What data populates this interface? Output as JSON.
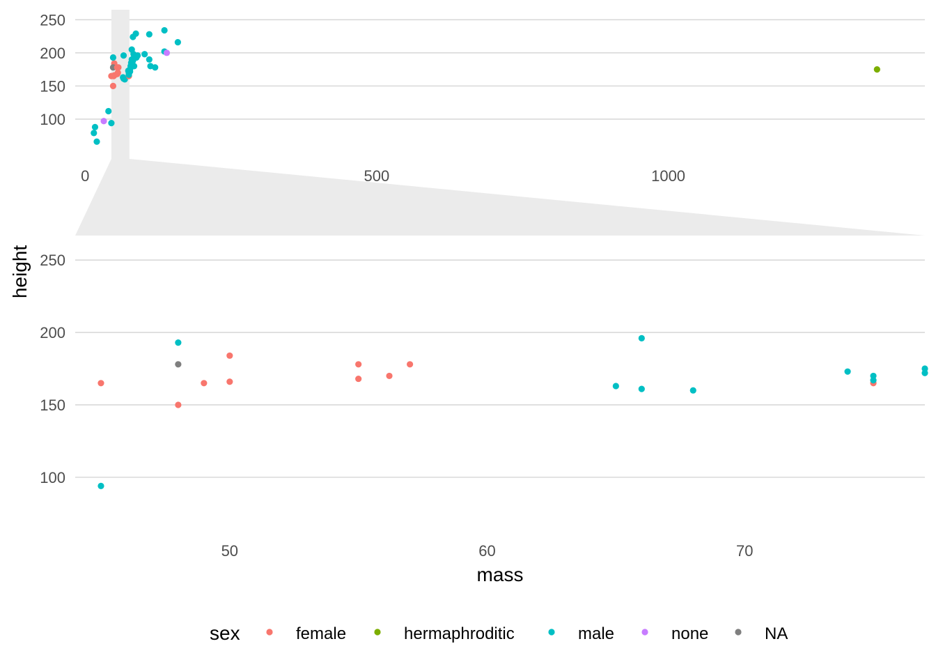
{
  "chart_data": {
    "type": "scatter",
    "xlabel": "mass",
    "ylabel": "height",
    "legend": {
      "title": "sex",
      "position": "bottom",
      "entries": [
        {
          "label": "female",
          "color": "#F8766D"
        },
        {
          "label": "hermaphroditic",
          "color": "#7CAE00"
        },
        {
          "label": "male",
          "color": "#00BFC4"
        },
        {
          "label": "none",
          "color": "#C77CFF"
        },
        {
          "label": "NA",
          "color": "#7F7F7F"
        }
      ]
    },
    "overview": {
      "xlim": [
        -17,
        1440
      ],
      "ylim": [
        40,
        265
      ],
      "xticks": [
        0,
        500,
        1000
      ],
      "yticks": [
        100,
        150,
        200,
        250
      ],
      "zoom_range": [
        45,
        76
      ],
      "grid": true
    },
    "zoom": {
      "xlim": [
        44,
        77
      ],
      "ylim": [
        60,
        265
      ],
      "xticks": [
        50,
        60,
        70
      ],
      "yticks": [
        100,
        150,
        200,
        250
      ],
      "grid": true
    },
    "points": [
      {
        "x": 20,
        "y": 66,
        "sex": "male"
      },
      {
        "x": 15,
        "y": 79,
        "sex": "male"
      },
      {
        "x": 17,
        "y": 88,
        "sex": "male"
      },
      {
        "x": 40,
        "y": 112,
        "sex": "male"
      },
      {
        "x": 45,
        "y": 94,
        "sex": "male"
      },
      {
        "x": 32,
        "y": 97,
        "sex": "none"
      },
      {
        "x": 45,
        "y": 165,
        "sex": "female"
      },
      {
        "x": 48,
        "y": 150,
        "sex": "female"
      },
      {
        "x": 49,
        "y": 165,
        "sex": "female"
      },
      {
        "x": 50,
        "y": 166,
        "sex": "female"
      },
      {
        "x": 50,
        "y": 184,
        "sex": "female"
      },
      {
        "x": 48,
        "y": 178,
        "sex": "NA"
      },
      {
        "x": 48,
        "y": 193,
        "sex": "male"
      },
      {
        "x": 55,
        "y": 168,
        "sex": "female"
      },
      {
        "x": 55,
        "y": 178,
        "sex": "female"
      },
      {
        "x": 56.2,
        "y": 170,
        "sex": "female"
      },
      {
        "x": 57,
        "y": 178,
        "sex": "female"
      },
      {
        "x": 65,
        "y": 163,
        "sex": "male"
      },
      {
        "x": 66,
        "y": 196,
        "sex": "male"
      },
      {
        "x": 68,
        "y": 160,
        "sex": "male"
      },
      {
        "x": 74,
        "y": 173,
        "sex": "male"
      },
      {
        "x": 75,
        "y": 165,
        "sex": "female"
      },
      {
        "x": 75,
        "y": 170,
        "sex": "male"
      },
      {
        "x": 75,
        "y": 167,
        "sex": "male"
      },
      {
        "x": 66,
        "y": 161,
        "sex": "male"
      },
      {
        "x": 77,
        "y": 172,
        "sex": "male"
      },
      {
        "x": 77,
        "y": 175,
        "sex": "male"
      },
      {
        "x": 78,
        "y": 180,
        "sex": "male"
      },
      {
        "x": 79,
        "y": 185,
        "sex": "male"
      },
      {
        "x": 80,
        "y": 183,
        "sex": "male"
      },
      {
        "x": 80,
        "y": 190,
        "sex": "male"
      },
      {
        "x": 80,
        "y": 205,
        "sex": "male"
      },
      {
        "x": 82,
        "y": 188,
        "sex": "male"
      },
      {
        "x": 82,
        "y": 224,
        "sex": "male"
      },
      {
        "x": 83,
        "y": 198,
        "sex": "male"
      },
      {
        "x": 84,
        "y": 180,
        "sex": "male"
      },
      {
        "x": 85,
        "y": 193,
        "sex": "male"
      },
      {
        "x": 85,
        "y": 196,
        "sex": "male"
      },
      {
        "x": 87,
        "y": 229,
        "sex": "male"
      },
      {
        "x": 88,
        "y": 193,
        "sex": "male"
      },
      {
        "x": 90,
        "y": 196,
        "sex": "male"
      },
      {
        "x": 102,
        "y": 198,
        "sex": "male"
      },
      {
        "x": 110,
        "y": 228,
        "sex": "male"
      },
      {
        "x": 110,
        "y": 190,
        "sex": "male"
      },
      {
        "x": 112,
        "y": 180,
        "sex": "male"
      },
      {
        "x": 120,
        "y": 178,
        "sex": "male"
      },
      {
        "x": 136,
        "y": 234,
        "sex": "male"
      },
      {
        "x": 136,
        "y": 202,
        "sex": "male"
      },
      {
        "x": 140,
        "y": 200,
        "sex": "none"
      },
      {
        "x": 159,
        "y": 216,
        "sex": "male"
      },
      {
        "x": 1358,
        "y": 175,
        "sex": "hermaphroditic"
      }
    ]
  }
}
